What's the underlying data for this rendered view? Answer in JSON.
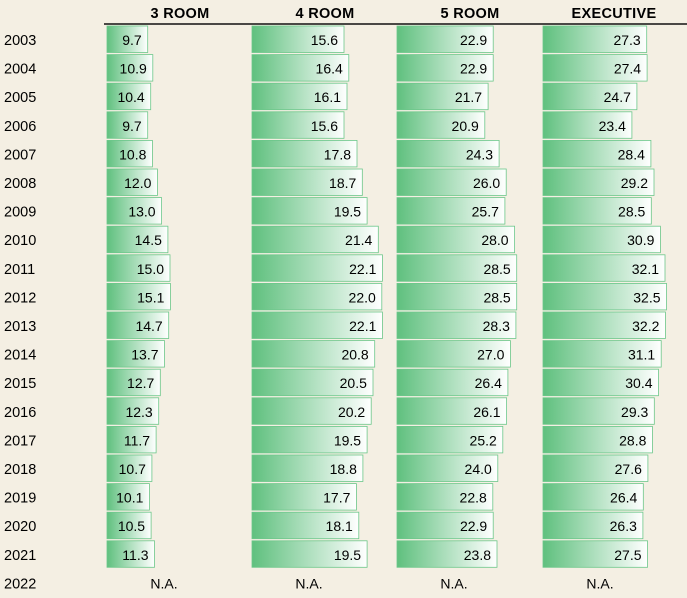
{
  "colors": {
    "background": "#f4efe3",
    "bar_dark": "#5fc07e",
    "bar_light": "#ffffff",
    "rule": "#111111"
  },
  "chart_data": {
    "type": "bar",
    "title": "",
    "xlabel": "",
    "ylabel": "",
    "categories": [
      "2003",
      "2004",
      "2005",
      "2006",
      "2007",
      "2008",
      "2009",
      "2010",
      "2011",
      "2012",
      "2013",
      "2014",
      "2015",
      "2016",
      "2017",
      "2018",
      "2019",
      "2020",
      "2021",
      "2022"
    ],
    "series": [
      {
        "name": "3 ROOM",
        "values": [
          9.7,
          10.9,
          10.4,
          9.7,
          10.8,
          12.0,
          13.0,
          14.5,
          15.0,
          15.1,
          14.7,
          13.7,
          12.7,
          12.3,
          11.7,
          10.7,
          10.1,
          10.5,
          11.3,
          null
        ]
      },
      {
        "name": "4 ROOM",
        "values": [
          15.6,
          16.4,
          16.1,
          15.6,
          17.8,
          18.7,
          19.5,
          21.4,
          22.1,
          22.0,
          22.1,
          20.8,
          20.5,
          20.2,
          19.5,
          18.8,
          17.7,
          18.1,
          19.5,
          null
        ]
      },
      {
        "name": "5 ROOM",
        "values": [
          22.9,
          22.9,
          21.7,
          20.9,
          24.3,
          26.0,
          25.7,
          28.0,
          28.5,
          28.5,
          28.3,
          27.0,
          26.4,
          26.1,
          25.2,
          24.0,
          22.8,
          22.9,
          23.8,
          null
        ]
      },
      {
        "name": "EXECUTIVE",
        "values": [
          27.3,
          27.4,
          24.7,
          23.4,
          28.4,
          29.2,
          28.5,
          30.9,
          32.1,
          32.5,
          32.2,
          31.1,
          30.4,
          29.3,
          28.8,
          27.6,
          26.4,
          26.3,
          27.5,
          null
        ]
      }
    ],
    "value_labels": [
      [
        "9.7",
        "10.9",
        "10.4",
        "9.7",
        "10.8",
        "12.0",
        "13.0",
        "14.5",
        "15.0",
        "15.1",
        "14.7",
        "13.7",
        "12.7",
        "12.3",
        "11.7",
        "10.7",
        "10.1",
        "10.5",
        "11.3"
      ],
      [
        "15.6",
        "16.4",
        "16.1",
        "15.6",
        "17.8",
        "18.7",
        "19.5",
        "21.4",
        "22.1",
        "22.0",
        "22.1",
        "20.8",
        "20.5",
        "20.2",
        "19.5",
        "18.8",
        "17.7",
        "18.1",
        "19.5"
      ],
      [
        "22.9",
        "22.9",
        "21.7",
        "20.9",
        "24.3",
        "26.0",
        "25.7",
        "28.0",
        "28.5",
        "28.5",
        "28.3",
        "27.0",
        "26.4",
        "26.1",
        "25.2",
        "24.0",
        "22.8",
        "22.9",
        "23.8"
      ],
      [
        "27.3",
        "27.4",
        "24.7",
        "23.4",
        "28.4",
        "29.2",
        "28.5",
        "30.9",
        "32.1",
        "32.5",
        "32.2",
        "31.1",
        "30.4",
        "29.3",
        "28.8",
        "27.6",
        "26.4",
        "26.3",
        "27.5"
      ]
    ],
    "missing_label": "N.A.",
    "grid": false,
    "legend": "none"
  }
}
